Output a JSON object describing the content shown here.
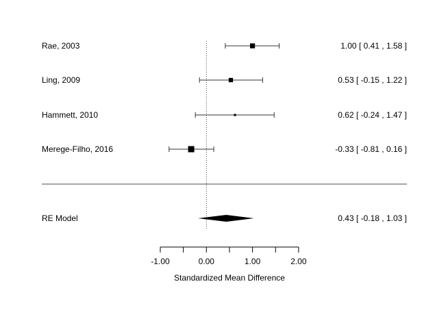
{
  "chart_data": {
    "type": "forest",
    "xlabel": "Standardized Mean Difference",
    "xlim": [
      -1,
      2
    ],
    "ticks": [
      -1,
      -0.5,
      0,
      0.5,
      1,
      1.5,
      2
    ],
    "tick_labels": [
      "-1.00",
      "0.00",
      "1.00",
      "2.00"
    ],
    "tick_label_values": [
      -1,
      0,
      1,
      2
    ],
    "reference_line": 0,
    "studies": [
      {
        "label": "Rae, 2003",
        "estimate": 1.0,
        "lower": 0.41,
        "upper": 1.58,
        "ci_text": "1.00 [  0.41 , 1.58 ]",
        "relative_weight": 0.8
      },
      {
        "label": "Ling, 2009",
        "estimate": 0.53,
        "lower": -0.15,
        "upper": 1.22,
        "ci_text": "0.53 [ -0.15 , 1.22 ]",
        "relative_weight": 0.7
      },
      {
        "label": "Hammett, 2010",
        "estimate": 0.62,
        "lower": -0.24,
        "upper": 1.47,
        "ci_text": "0.62 [ -0.24 , 1.47 ]",
        "relative_weight": 0.35
      },
      {
        "label": "Merege-Filho, 2016",
        "estimate": -0.33,
        "lower": -0.81,
        "upper": 0.16,
        "ci_text": "-0.33 [ -0.81 , 0.16 ]",
        "relative_weight": 1.0
      }
    ],
    "summary": {
      "label": "RE Model",
      "estimate": 0.43,
      "lower": -0.18,
      "upper": 1.03,
      "ci_text": "0.43 [ -0.18 , 1.03 ]"
    }
  }
}
